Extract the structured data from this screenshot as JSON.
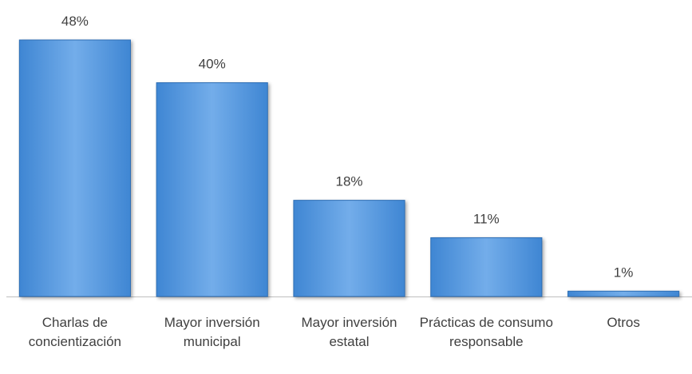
{
  "chart_data": {
    "type": "bar",
    "categories": [
      "Charlas de concientización",
      "Mayor inversión municipal",
      "Mayor inversión estatal",
      "Prácticas de consumo responsable",
      "Otros"
    ],
    "values": [
      48,
      40,
      18,
      11,
      1
    ],
    "value_labels": [
      "48%",
      "40%",
      "18%",
      "11%",
      "1%"
    ],
    "color": "#5b9bd5"
  }
}
